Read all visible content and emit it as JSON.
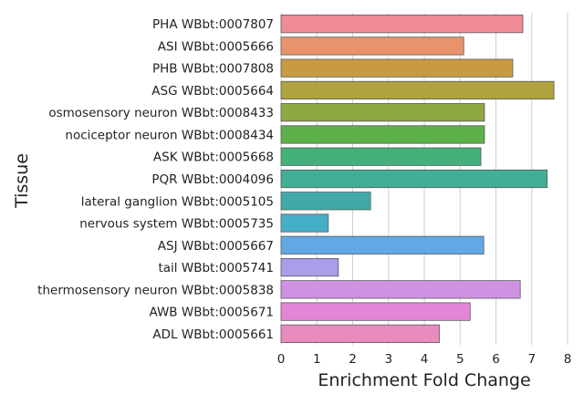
{
  "chart_data": {
    "type": "bar",
    "orientation": "horizontal",
    "title": "",
    "xlabel": "Enrichment Fold Change",
    "ylabel": "Tissue",
    "xlim": [
      0,
      8
    ],
    "x_ticks": [
      "0",
      "1",
      "2",
      "3",
      "4",
      "5",
      "6",
      "7",
      "8"
    ],
    "grid": "vertical",
    "legend": "none",
    "categories": [
      "PHA WBbt:0007807",
      "ASI WBbt:0005666",
      "PHB WBbt:0007808",
      "ASG WBbt:0005664",
      "osmosensory neuron WBbt:0008433",
      "nociceptor neuron WBbt:0008434",
      "ASK WBbt:0005668",
      "PQR WBbt:0004096",
      "lateral ganglion WBbt:0005105",
      "nervous system WBbt:0005735",
      "ASJ WBbt:0005667",
      "tail WBbt:0005741",
      "thermosensory neuron WBbt:0005838",
      "AWB WBbt:0005671",
      "ADL WBbt:0005661"
    ],
    "values": [
      6.75,
      5.1,
      6.47,
      7.62,
      5.68,
      5.68,
      5.58,
      7.43,
      2.5,
      1.32,
      5.66,
      1.6,
      6.68,
      5.28,
      4.42
    ],
    "colors": [
      "#f08c97",
      "#e9936c",
      "#c99a41",
      "#aea33c",
      "#90a840",
      "#5db14a",
      "#45b17a",
      "#43ae96",
      "#41aaa8",
      "#47aec7",
      "#62a8e4",
      "#ab9de8",
      "#cf92e2",
      "#e585d7",
      "#e88bbd"
    ]
  }
}
